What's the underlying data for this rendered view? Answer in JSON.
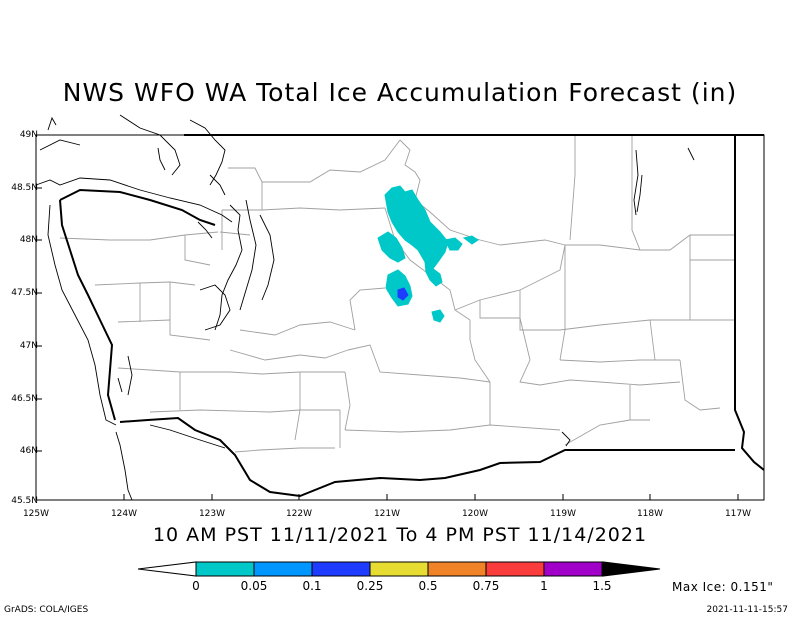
{
  "title": "NWS WFO WA Total Ice Accumulation Forecast (in)",
  "subtitle": "10 AM PST 11/11/2021 To 4 PM PST 11/14/2021",
  "lat_labels": [
    "49N",
    "48.5N",
    "48N",
    "47.5N",
    "47N",
    "46.5N",
    "46N",
    "45.5N"
  ],
  "lon_labels": [
    "125W",
    "124W",
    "123W",
    "122W",
    "121W",
    "120W",
    "119W",
    "118W",
    "117W"
  ],
  "colorbar": {
    "labels": [
      "0",
      "0.05",
      "0.1",
      "0.25",
      "0.5",
      "0.75",
      "1",
      "1.5"
    ],
    "colors": [
      "#00c8c8",
      "#0096ff",
      "#1e3cff",
      "#e6dc32",
      "#f08228",
      "#fa3c3c",
      "#a000c8"
    ]
  },
  "max_ice": "Max Ice: 0.151\"",
  "credit": "GrADS: COLA/IGES",
  "timestamp": "2021-11-11-15:57"
}
